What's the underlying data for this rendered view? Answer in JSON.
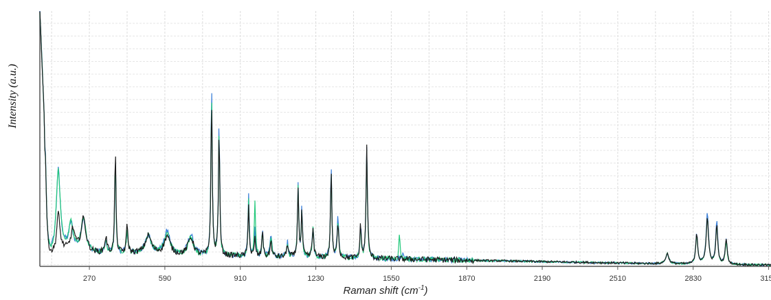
{
  "chart_data": {
    "type": "line",
    "xlabel_text": "Raman shift (cm",
    "xlabel_sup": "-1",
    "xlabel_close": ")",
    "ylabel": "Intensity (a.u.)",
    "xlim": [
      60,
      3160
    ],
    "ylim": [
      0,
      100
    ],
    "x_ticks": [
      "270",
      "590",
      "910",
      "1230",
      "1550",
      "1870",
      "2190",
      "2510",
      "2830",
      "3150"
    ],
    "x_tick_values": [
      270,
      590,
      910,
      1230,
      1550,
      1870,
      2190,
      2510,
      2830,
      3150
    ],
    "grid": true,
    "baseline": [
      [
        60,
        1
      ],
      [
        110,
        3
      ],
      [
        150,
        6
      ],
      [
        200,
        6
      ],
      [
        300,
        5
      ],
      [
        500,
        5
      ],
      [
        700,
        4
      ],
      [
        900,
        4
      ],
      [
        1200,
        3.5
      ],
      [
        1500,
        3
      ],
      [
        1800,
        2.5
      ],
      [
        2100,
        2
      ],
      [
        2400,
        1.5
      ],
      [
        2700,
        1
      ],
      [
        3160,
        0.5
      ]
    ],
    "series": [
      {
        "color": "#3a7fd8",
        "noise": 1.3,
        "peaks": [
          [
            82,
            45,
            6
          ],
          [
            138,
            32,
            10
          ],
          [
            192,
            10,
            10
          ],
          [
            245,
            13,
            12
          ],
          [
            340,
            4,
            6
          ],
          [
            380,
            38,
            3
          ],
          [
            430,
            9,
            4
          ],
          [
            520,
            7,
            15
          ],
          [
            600,
            9,
            15
          ],
          [
            700,
            8,
            15
          ],
          [
            788,
            68,
            3.2
          ],
          [
            820,
            53,
            3.2
          ],
          [
            945,
            25,
            3
          ],
          [
            972,
            11,
            3
          ],
          [
            1004,
            12,
            3
          ],
          [
            1040,
            9,
            4
          ],
          [
            1110,
            6,
            4
          ],
          [
            1155,
            29,
            3.2
          ],
          [
            1171,
            20,
            3
          ],
          [
            1218,
            12,
            4
          ],
          [
            1295,
            38,
            3
          ],
          [
            1324,
            16,
            4
          ],
          [
            1420,
            14,
            3
          ],
          [
            1446,
            44,
            3.5
          ],
          [
            1600,
            2,
            5
          ],
          [
            2720,
            4,
            8
          ],
          [
            2845,
            12,
            5
          ],
          [
            2890,
            20,
            6
          ],
          [
            2930,
            17,
            5
          ],
          [
            2970,
            10,
            5
          ]
        ]
      },
      {
        "color": "#22c87a",
        "noise": 1.2,
        "peaks": [
          [
            82,
            45,
            6
          ],
          [
            138,
            32,
            10
          ],
          [
            192,
            10,
            10
          ],
          [
            245,
            13,
            12
          ],
          [
            340,
            4,
            6
          ],
          [
            380,
            38,
            3
          ],
          [
            430,
            9,
            4
          ],
          [
            520,
            7,
            15
          ],
          [
            600,
            8,
            15
          ],
          [
            700,
            7,
            15
          ],
          [
            788,
            65,
            3.2
          ],
          [
            820,
            50,
            3.2
          ],
          [
            945,
            22,
            3
          ],
          [
            972,
            22,
            3
          ],
          [
            1004,
            10,
            3
          ],
          [
            1040,
            8,
            4
          ],
          [
            1110,
            5,
            4
          ],
          [
            1155,
            27,
            3.2
          ],
          [
            1171,
            18,
            3
          ],
          [
            1218,
            11,
            4
          ],
          [
            1295,
            35,
            3
          ],
          [
            1324,
            14,
            4
          ],
          [
            1420,
            12,
            3
          ],
          [
            1446,
            42,
            3.5
          ],
          [
            1585,
            10,
            3
          ],
          [
            2720,
            4,
            8
          ],
          [
            2845,
            11,
            5
          ],
          [
            2890,
            18,
            6
          ],
          [
            2930,
            15,
            5
          ],
          [
            2970,
            9,
            5
          ]
        ]
      },
      {
        "color": "#1b1b1b",
        "noise": 1.4,
        "peaks": [
          [
            82,
            45,
            6
          ],
          [
            138,
            15,
            8
          ],
          [
            200,
            8,
            10
          ],
          [
            245,
            13,
            12
          ],
          [
            340,
            6,
            6
          ],
          [
            380,
            42,
            3
          ],
          [
            430,
            11,
            4
          ],
          [
            520,
            7,
            15
          ],
          [
            600,
            7,
            15
          ],
          [
            700,
            7,
            15
          ],
          [
            788,
            63,
            3.2
          ],
          [
            820,
            50,
            3.2
          ],
          [
            945,
            21,
            3
          ],
          [
            972,
            7,
            3
          ],
          [
            1004,
            11,
            3
          ],
          [
            1040,
            6,
            4
          ],
          [
            1110,
            5,
            4
          ],
          [
            1155,
            27,
            3.2
          ],
          [
            1171,
            18,
            3
          ],
          [
            1218,
            11,
            4
          ],
          [
            1295,
            36,
            3
          ],
          [
            1324,
            14,
            4
          ],
          [
            1420,
            14,
            3
          ],
          [
            1446,
            44,
            3.5
          ],
          [
            2720,
            4,
            8
          ],
          [
            2845,
            12,
            5
          ],
          [
            2890,
            18,
            6
          ],
          [
            2930,
            15,
            5
          ],
          [
            2970,
            10,
            5
          ]
        ]
      }
    ]
  }
}
